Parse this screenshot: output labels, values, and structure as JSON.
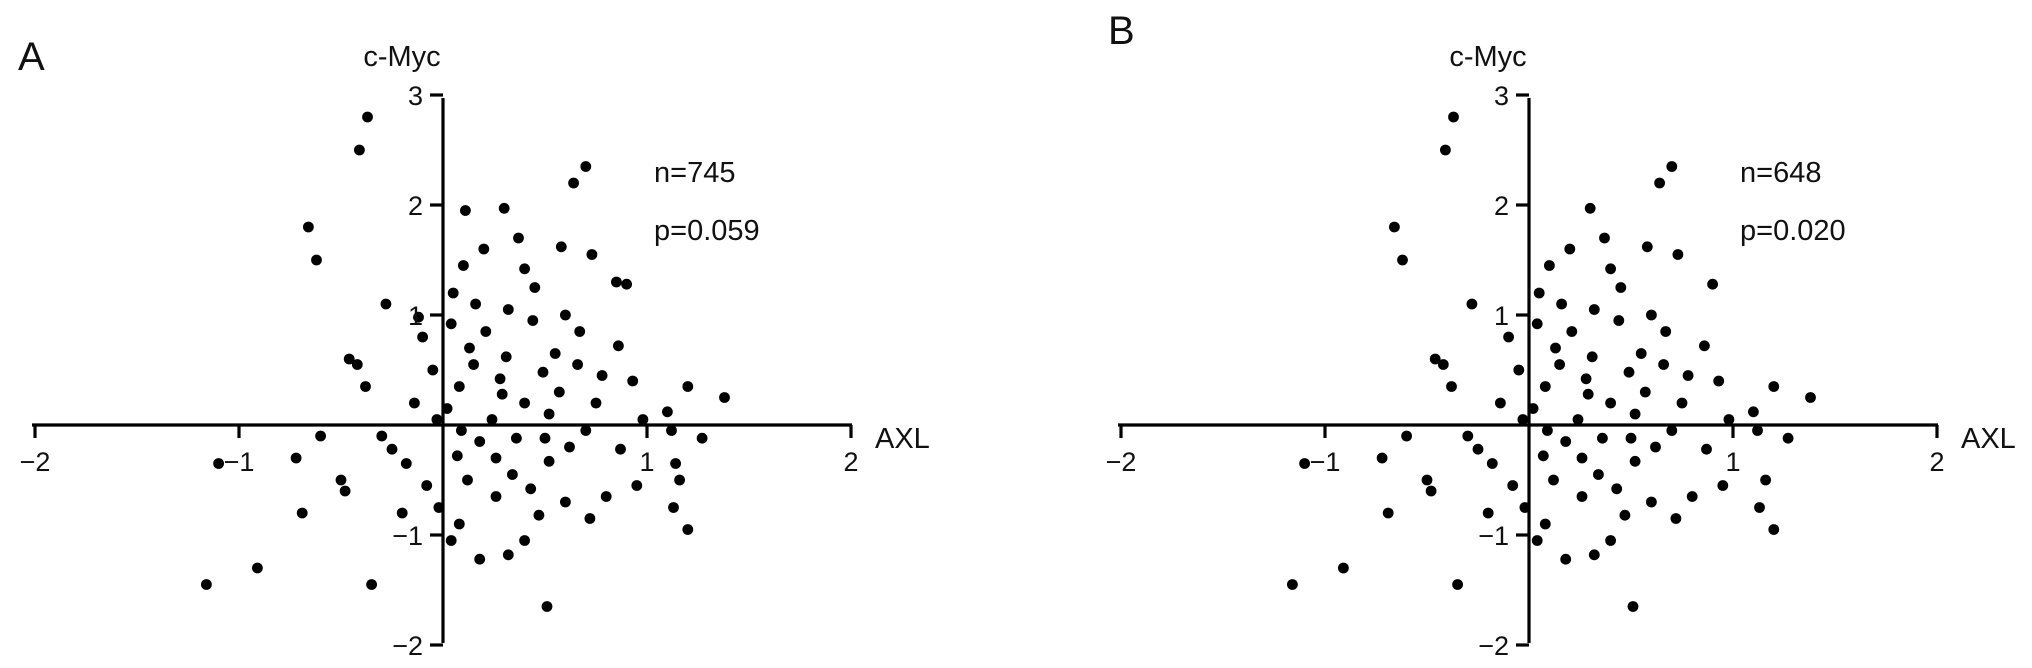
{
  "chart_data": [
    {
      "panel": "A",
      "type": "scatter",
      "xlabel": "AXL",
      "ylabel": "c-Myc",
      "xlim": [
        -2,
        2
      ],
      "ylim": [
        -2,
        3
      ],
      "x_ticks": [
        "−2",
        "−1",
        "1",
        "2"
      ],
      "y_ticks": [
        "−2",
        "−1",
        "1",
        "2",
        "3"
      ],
      "annotations": [
        "n=745",
        "p=0.059"
      ],
      "grid": false,
      "marker_color": "#000000",
      "points": [
        [
          -0.37,
          2.8
        ],
        [
          -0.41,
          2.5
        ],
        [
          -0.66,
          1.8
        ],
        [
          -0.62,
          1.5
        ],
        [
          0.7,
          2.35
        ],
        [
          0.64,
          2.2
        ],
        [
          0.11,
          1.95
        ],
        [
          0.3,
          1.97
        ],
        [
          -0.28,
          1.1
        ],
        [
          -0.46,
          0.6
        ],
        [
          -0.42,
          0.55
        ],
        [
          -0.38,
          0.35
        ],
        [
          1.38,
          0.25
        ],
        [
          1.2,
          0.35
        ],
        [
          1.1,
          0.12
        ],
        [
          1.12,
          -0.05
        ],
        [
          1.27,
          -0.12
        ],
        [
          1.16,
          -0.5
        ],
        [
          1.14,
          -0.35
        ],
        [
          1.13,
          -0.75
        ],
        [
          1.2,
          -0.95
        ],
        [
          -0.5,
          -0.5
        ],
        [
          -0.48,
          -0.6
        ],
        [
          -0.72,
          -0.3
        ],
        [
          -0.6,
          -0.1
        ],
        [
          -0.69,
          -0.8
        ],
        [
          -1.1,
          -0.35
        ],
        [
          -0.91,
          -1.3
        ],
        [
          -1.16,
          -1.45
        ],
        [
          -0.35,
          -1.45
        ],
        [
          0.04,
          -1.05
        ],
        [
          0.18,
          -1.22
        ],
        [
          0.32,
          -1.18
        ],
        [
          0.4,
          -1.05
        ],
        [
          0.51,
          -1.65
        ],
        [
          -0.2,
          -0.8
        ],
        [
          -0.3,
          -0.1
        ],
        [
          -0.25,
          -0.22
        ],
        [
          -0.02,
          -0.75
        ],
        [
          0.08,
          -0.9
        ],
        [
          0.72,
          -0.85
        ],
        [
          0.95,
          -0.55
        ],
        [
          0.98,
          0.05
        ],
        [
          0.86,
          0.72
        ],
        [
          0.9,
          1.28
        ],
        [
          0.85,
          1.3
        ],
        [
          0.73,
          1.55
        ],
        [
          0.6,
          1.0
        ],
        [
          0.78,
          0.45
        ],
        [
          0.55,
          0.65
        ],
        [
          0.45,
          1.25
        ],
        [
          0.32,
          1.05
        ],
        [
          0.21,
          0.85
        ],
        [
          0.15,
          0.55
        ],
        [
          0.08,
          0.35
        ],
        [
          0.02,
          0.15
        ],
        [
          0.09,
          -0.05
        ],
        [
          0.18,
          -0.15
        ],
        [
          0.26,
          -0.3
        ],
        [
          0.34,
          -0.45
        ],
        [
          0.43,
          -0.58
        ],
        [
          0.52,
          -0.33
        ],
        [
          0.62,
          -0.2
        ],
        [
          0.7,
          -0.05
        ],
        [
          0.4,
          0.2
        ],
        [
          0.28,
          0.42
        ],
        [
          0.49,
          0.48
        ],
        [
          0.57,
          0.3
        ],
        [
          0.36,
          -0.12
        ],
        [
          0.24,
          0.05
        ],
        [
          0.13,
          0.7
        ],
        [
          0.05,
          1.2
        ],
        [
          0.2,
          1.6
        ],
        [
          0.37,
          1.7
        ],
        [
          0.1,
          1.45
        ],
        [
          -0.1,
          0.8
        ],
        [
          -0.05,
          0.5
        ],
        [
          -0.14,
          0.2
        ],
        [
          -0.18,
          -0.35
        ],
        [
          -0.08,
          -0.55
        ],
        [
          0.6,
          -0.7
        ],
        [
          0.8,
          -0.65
        ],
        [
          0.67,
          0.85
        ],
        [
          0.44,
          0.95
        ],
        [
          0.12,
          -0.5
        ],
        [
          0.31,
          0.62
        ],
        [
          0.04,
          0.92
        ],
        [
          -0.03,
          0.05
        ],
        [
          0.52,
          0.1
        ],
        [
          0.75,
          0.2
        ],
        [
          0.87,
          -0.22
        ],
        [
          0.93,
          0.4
        ],
        [
          0.16,
          1.1
        ],
        [
          0.4,
          1.42
        ],
        [
          0.58,
          1.62
        ],
        [
          0.26,
          -0.65
        ],
        [
          0.47,
          -0.82
        ],
        [
          0.07,
          -0.28
        ],
        [
          0.66,
          0.55
        ],
        [
          -0.12,
          0.98
        ],
        [
          0.29,
          0.28
        ],
        [
          0.5,
          -0.12
        ]
      ]
    },
    {
      "panel": "B",
      "type": "scatter",
      "xlabel": "AXL",
      "ylabel": "c-Myc",
      "xlim": [
        -2,
        2
      ],
      "ylim": [
        -2,
        3
      ],
      "x_ticks": [
        "−2",
        "−1",
        "1",
        "2"
      ],
      "y_ticks": [
        "−2",
        "−1",
        "1",
        "2",
        "3"
      ],
      "annotations": [
        "n=648",
        "p=0.020"
      ],
      "grid": false,
      "marker_color": "#000000",
      "points": [
        [
          -0.37,
          2.8
        ],
        [
          -0.41,
          2.5
        ],
        [
          -0.66,
          1.8
        ],
        [
          -0.62,
          1.5
        ],
        [
          0.7,
          2.35
        ],
        [
          0.64,
          2.2
        ],
        [
          0.3,
          1.97
        ],
        [
          -0.28,
          1.1
        ],
        [
          -0.46,
          0.6
        ],
        [
          -0.42,
          0.55
        ],
        [
          -0.38,
          0.35
        ],
        [
          1.38,
          0.25
        ],
        [
          1.2,
          0.35
        ],
        [
          1.1,
          0.12
        ],
        [
          1.12,
          -0.05
        ],
        [
          1.27,
          -0.12
        ],
        [
          1.16,
          -0.5
        ],
        [
          1.13,
          -0.75
        ],
        [
          1.2,
          -0.95
        ],
        [
          -0.5,
          -0.5
        ],
        [
          -0.48,
          -0.6
        ],
        [
          -0.72,
          -0.3
        ],
        [
          -0.6,
          -0.1
        ],
        [
          -0.69,
          -0.8
        ],
        [
          -1.1,
          -0.35
        ],
        [
          -0.91,
          -1.3
        ],
        [
          -1.16,
          -1.45
        ],
        [
          -0.35,
          -1.45
        ],
        [
          0.04,
          -1.05
        ],
        [
          0.18,
          -1.22
        ],
        [
          0.32,
          -1.18
        ],
        [
          0.4,
          -1.05
        ],
        [
          0.51,
          -1.65
        ],
        [
          -0.2,
          -0.8
        ],
        [
          -0.3,
          -0.1
        ],
        [
          -0.25,
          -0.22
        ],
        [
          -0.02,
          -0.75
        ],
        [
          0.08,
          -0.9
        ],
        [
          0.72,
          -0.85
        ],
        [
          0.95,
          -0.55
        ],
        [
          0.98,
          0.05
        ],
        [
          0.86,
          0.72
        ],
        [
          0.9,
          1.28
        ],
        [
          0.73,
          1.55
        ],
        [
          0.6,
          1.0
        ],
        [
          0.78,
          0.45
        ],
        [
          0.55,
          0.65
        ],
        [
          0.45,
          1.25
        ],
        [
          0.32,
          1.05
        ],
        [
          0.21,
          0.85
        ],
        [
          0.15,
          0.55
        ],
        [
          0.08,
          0.35
        ],
        [
          0.02,
          0.15
        ],
        [
          0.09,
          -0.05
        ],
        [
          0.18,
          -0.15
        ],
        [
          0.26,
          -0.3
        ],
        [
          0.34,
          -0.45
        ],
        [
          0.43,
          -0.58
        ],
        [
          0.52,
          -0.33
        ],
        [
          0.62,
          -0.2
        ],
        [
          0.7,
          -0.05
        ],
        [
          0.4,
          0.2
        ],
        [
          0.28,
          0.42
        ],
        [
          0.49,
          0.48
        ],
        [
          0.57,
          0.3
        ],
        [
          0.36,
          -0.12
        ],
        [
          0.24,
          0.05
        ],
        [
          0.13,
          0.7
        ],
        [
          0.05,
          1.2
        ],
        [
          0.2,
          1.6
        ],
        [
          0.37,
          1.7
        ],
        [
          0.1,
          1.45
        ],
        [
          -0.1,
          0.8
        ],
        [
          -0.05,
          0.5
        ],
        [
          -0.14,
          0.2
        ],
        [
          -0.18,
          -0.35
        ],
        [
          -0.08,
          -0.55
        ],
        [
          0.6,
          -0.7
        ],
        [
          0.8,
          -0.65
        ],
        [
          0.67,
          0.85
        ],
        [
          0.44,
          0.95
        ],
        [
          0.12,
          -0.5
        ],
        [
          0.31,
          0.62
        ],
        [
          0.04,
          0.92
        ],
        [
          -0.03,
          0.05
        ],
        [
          0.52,
          0.1
        ],
        [
          0.75,
          0.2
        ],
        [
          0.87,
          -0.22
        ],
        [
          0.93,
          0.4
        ],
        [
          0.16,
          1.1
        ],
        [
          0.4,
          1.42
        ],
        [
          0.58,
          1.62
        ],
        [
          0.26,
          -0.65
        ],
        [
          0.47,
          -0.82
        ],
        [
          0.07,
          -0.28
        ],
        [
          0.66,
          0.55
        ],
        [
          0.29,
          0.28
        ],
        [
          0.5,
          -0.12
        ]
      ]
    }
  ]
}
